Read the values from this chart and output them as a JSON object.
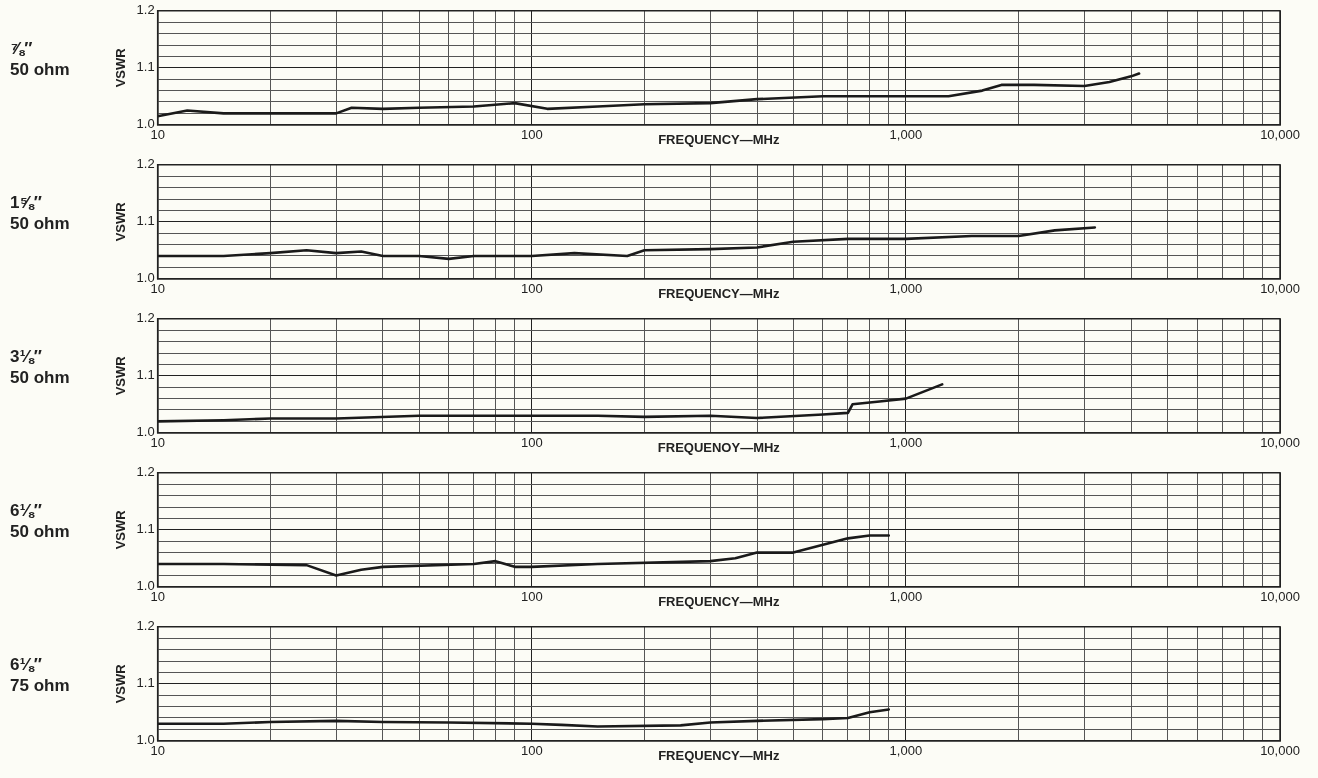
{
  "chart_data": [
    {
      "type": "line",
      "title": "⅞″\n50 ohm",
      "ylabel": "VSWR",
      "xlabel": "FREQUENCY—MHz",
      "log": "x",
      "grid": true,
      "marker": "none",
      "line_style": "solid",
      "color": "#1a1a1a",
      "x": [
        10,
        12,
        15,
        20,
        30,
        33,
        40,
        50,
        70,
        90,
        110,
        150,
        200,
        300,
        400,
        600,
        800,
        1000,
        1300,
        1600,
        1800,
        2200,
        3000,
        3500,
        4000,
        4200
      ],
      "values": [
        1.015,
        1.025,
        1.02,
        1.02,
        1.02,
        1.03,
        1.028,
        1.03,
        1.032,
        1.038,
        1.028,
        1.032,
        1.036,
        1.038,
        1.045,
        1.05,
        1.05,
        1.05,
        1.05,
        1.06,
        1.07,
        1.07,
        1.068,
        1.075,
        1.085,
        1.09
      ],
      "xlim": [
        10,
        10000
      ],
      "xticks": [
        {
          "value": 10,
          "label": "10"
        },
        {
          "value": 20,
          "label": null
        },
        {
          "value": 30,
          "label": null
        },
        {
          "value": 40,
          "label": null
        },
        {
          "value": 50,
          "label": null
        },
        {
          "value": 60,
          "label": null
        },
        {
          "value": 70,
          "label": null
        },
        {
          "value": 80,
          "label": null
        },
        {
          "value": 90,
          "label": null
        },
        {
          "value": 100,
          "label": "100"
        },
        {
          "value": 200,
          "label": null
        },
        {
          "value": 300,
          "label": null
        },
        {
          "value": 400,
          "label": null
        },
        {
          "value": 500,
          "label": null
        },
        {
          "value": 600,
          "label": null
        },
        {
          "value": 700,
          "label": null
        },
        {
          "value": 800,
          "label": null
        },
        {
          "value": 900,
          "label": null
        },
        {
          "value": 1000,
          "label": "1,000"
        },
        {
          "value": 2000,
          "label": null
        },
        {
          "value": 3000,
          "label": null
        },
        {
          "value": 4000,
          "label": null
        },
        {
          "value": 5000,
          "label": null
        },
        {
          "value": 6000,
          "label": null
        },
        {
          "value": 7000,
          "label": null
        },
        {
          "value": 8000,
          "label": null
        },
        {
          "value": 9000,
          "label": null
        },
        {
          "value": 10000,
          "label": "10,000"
        }
      ],
      "ylim": [
        1.0,
        1.2
      ],
      "yticks": [
        {
          "value": 1.0,
          "label": "1.0"
        },
        {
          "value": 1.02,
          "label": null
        },
        {
          "value": 1.04,
          "label": null
        },
        {
          "value": 1.06,
          "label": null
        },
        {
          "value": 1.08,
          "label": null
        },
        {
          "value": 1.1,
          "label": "1.1"
        },
        {
          "value": 1.12,
          "label": null
        },
        {
          "value": 1.14,
          "label": null
        },
        {
          "value": 1.16,
          "label": null
        },
        {
          "value": 1.18,
          "label": null
        },
        {
          "value": 1.2,
          "label": "1.2"
        }
      ]
    },
    {
      "type": "line",
      "title": "1⅝″\n50 ohm",
      "ylabel": "VSWR",
      "xlabel": "FREQUENCY—MHz",
      "log": "x",
      "grid": true,
      "marker": "none",
      "line_style": "solid",
      "color": "#1a1a1a",
      "x": [
        10,
        15,
        20,
        25,
        30,
        35,
        40,
        50,
        60,
        70,
        100,
        130,
        180,
        200,
        300,
        400,
        500,
        700,
        1000,
        1500,
        2000,
        2500,
        3200
      ],
      "values": [
        1.04,
        1.04,
        1.045,
        1.05,
        1.045,
        1.048,
        1.04,
        1.04,
        1.035,
        1.04,
        1.04,
        1.045,
        1.04,
        1.05,
        1.052,
        1.055,
        1.065,
        1.07,
        1.07,
        1.075,
        1.075,
        1.085,
        1.09
      ],
      "xlim": [
        10,
        10000
      ],
      "xticks": [
        {
          "value": 10,
          "label": "10"
        },
        {
          "value": 20,
          "label": null
        },
        {
          "value": 30,
          "label": null
        },
        {
          "value": 40,
          "label": null
        },
        {
          "value": 50,
          "label": null
        },
        {
          "value": 60,
          "label": null
        },
        {
          "value": 70,
          "label": null
        },
        {
          "value": 80,
          "label": null
        },
        {
          "value": 90,
          "label": null
        },
        {
          "value": 100,
          "label": "100"
        },
        {
          "value": 200,
          "label": null
        },
        {
          "value": 300,
          "label": null
        },
        {
          "value": 400,
          "label": null
        },
        {
          "value": 500,
          "label": null
        },
        {
          "value": 600,
          "label": null
        },
        {
          "value": 700,
          "label": null
        },
        {
          "value": 800,
          "label": null
        },
        {
          "value": 900,
          "label": null
        },
        {
          "value": 1000,
          "label": "1,000"
        },
        {
          "value": 2000,
          "label": null
        },
        {
          "value": 3000,
          "label": null
        },
        {
          "value": 4000,
          "label": null
        },
        {
          "value": 5000,
          "label": null
        },
        {
          "value": 6000,
          "label": null
        },
        {
          "value": 7000,
          "label": null
        },
        {
          "value": 8000,
          "label": null
        },
        {
          "value": 9000,
          "label": null
        },
        {
          "value": 10000,
          "label": "10,000"
        }
      ],
      "ylim": [
        1.0,
        1.2
      ],
      "yticks": [
        {
          "value": 1.0,
          "label": "1.0"
        },
        {
          "value": 1.02,
          "label": null
        },
        {
          "value": 1.04,
          "label": null
        },
        {
          "value": 1.06,
          "label": null
        },
        {
          "value": 1.08,
          "label": null
        },
        {
          "value": 1.1,
          "label": "1.1"
        },
        {
          "value": 1.12,
          "label": null
        },
        {
          "value": 1.14,
          "label": null
        },
        {
          "value": 1.16,
          "label": null
        },
        {
          "value": 1.18,
          "label": null
        },
        {
          "value": 1.2,
          "label": "1.2"
        }
      ]
    },
    {
      "type": "line",
      "title": "3⅛″\n50 ohm",
      "ylabel": "VSWR",
      "xlabel": "FREQUENOY—MHz",
      "log": "x",
      "grid": true,
      "marker": "none",
      "line_style": "solid",
      "color": "#1a1a1a",
      "x": [
        10,
        15,
        20,
        30,
        50,
        100,
        150,
        200,
        300,
        400,
        600,
        700,
        720,
        850,
        1000,
        1250
      ],
      "values": [
        1.02,
        1.022,
        1.025,
        1.025,
        1.03,
        1.03,
        1.03,
        1.028,
        1.03,
        1.026,
        1.032,
        1.035,
        1.05,
        1.055,
        1.06,
        1.085
      ],
      "xlim": [
        10,
        10000
      ],
      "xticks": [
        {
          "value": 10,
          "label": "10"
        },
        {
          "value": 20,
          "label": null
        },
        {
          "value": 30,
          "label": null
        },
        {
          "value": 40,
          "label": null
        },
        {
          "value": 50,
          "label": null
        },
        {
          "value": 60,
          "label": null
        },
        {
          "value": 70,
          "label": null
        },
        {
          "value": 80,
          "label": null
        },
        {
          "value": 90,
          "label": null
        },
        {
          "value": 100,
          "label": "100"
        },
        {
          "value": 200,
          "label": null
        },
        {
          "value": 300,
          "label": null
        },
        {
          "value": 400,
          "label": null
        },
        {
          "value": 500,
          "label": null
        },
        {
          "value": 600,
          "label": null
        },
        {
          "value": 700,
          "label": null
        },
        {
          "value": 800,
          "label": null
        },
        {
          "value": 900,
          "label": null
        },
        {
          "value": 1000,
          "label": "1,000"
        },
        {
          "value": 2000,
          "label": null
        },
        {
          "value": 3000,
          "label": null
        },
        {
          "value": 4000,
          "label": null
        },
        {
          "value": 5000,
          "label": null
        },
        {
          "value": 6000,
          "label": null
        },
        {
          "value": 7000,
          "label": null
        },
        {
          "value": 8000,
          "label": null
        },
        {
          "value": 9000,
          "label": null
        },
        {
          "value": 10000,
          "label": "10,000"
        }
      ],
      "ylim": [
        1.0,
        1.2
      ],
      "yticks": [
        {
          "value": 1.0,
          "label": "1.0"
        },
        {
          "value": 1.02,
          "label": null
        },
        {
          "value": 1.04,
          "label": null
        },
        {
          "value": 1.06,
          "label": null
        },
        {
          "value": 1.08,
          "label": null
        },
        {
          "value": 1.1,
          "label": "1.1"
        },
        {
          "value": 1.12,
          "label": null
        },
        {
          "value": 1.14,
          "label": null
        },
        {
          "value": 1.16,
          "label": null
        },
        {
          "value": 1.18,
          "label": null
        },
        {
          "value": 1.2,
          "label": "1.2"
        }
      ]
    },
    {
      "type": "line",
      "title": "6⅛″\n50 ohm",
      "ylabel": "VSWR",
      "xlabel": "FREQUENCY—MHz",
      "log": "x",
      "grid": true,
      "marker": "none",
      "line_style": "solid",
      "color": "#1a1a1a",
      "x": [
        10,
        15,
        25,
        30,
        35,
        40,
        70,
        80,
        90,
        100,
        150,
        300,
        350,
        400,
        500,
        700,
        800,
        900
      ],
      "values": [
        1.04,
        1.04,
        1.038,
        1.02,
        1.03,
        1.035,
        1.04,
        1.045,
        1.035,
        1.035,
        1.04,
        1.045,
        1.05,
        1.06,
        1.06,
        1.085,
        1.09,
        1.09
      ],
      "xlim": [
        10,
        10000
      ],
      "xticks": [
        {
          "value": 10,
          "label": "10"
        },
        {
          "value": 20,
          "label": null
        },
        {
          "value": 30,
          "label": null
        },
        {
          "value": 40,
          "label": null
        },
        {
          "value": 50,
          "label": null
        },
        {
          "value": 60,
          "label": null
        },
        {
          "value": 70,
          "label": null
        },
        {
          "value": 80,
          "label": null
        },
        {
          "value": 90,
          "label": null
        },
        {
          "value": 100,
          "label": "100"
        },
        {
          "value": 200,
          "label": null
        },
        {
          "value": 300,
          "label": null
        },
        {
          "value": 400,
          "label": null
        },
        {
          "value": 500,
          "label": null
        },
        {
          "value": 600,
          "label": null
        },
        {
          "value": 700,
          "label": null
        },
        {
          "value": 800,
          "label": null
        },
        {
          "value": 900,
          "label": null
        },
        {
          "value": 1000,
          "label": "1,000"
        },
        {
          "value": 2000,
          "label": null
        },
        {
          "value": 3000,
          "label": null
        },
        {
          "value": 4000,
          "label": null
        },
        {
          "value": 5000,
          "label": null
        },
        {
          "value": 6000,
          "label": null
        },
        {
          "value": 7000,
          "label": null
        },
        {
          "value": 8000,
          "label": null
        },
        {
          "value": 9000,
          "label": null
        },
        {
          "value": 10000,
          "label": "10,000"
        }
      ],
      "ylim": [
        1.0,
        1.2
      ],
      "yticks": [
        {
          "value": 1.0,
          "label": "1.0"
        },
        {
          "value": 1.02,
          "label": null
        },
        {
          "value": 1.04,
          "label": null
        },
        {
          "value": 1.06,
          "label": null
        },
        {
          "value": 1.08,
          "label": null
        },
        {
          "value": 1.1,
          "label": "1.1"
        },
        {
          "value": 1.12,
          "label": null
        },
        {
          "value": 1.14,
          "label": null
        },
        {
          "value": 1.16,
          "label": null
        },
        {
          "value": 1.18,
          "label": null
        },
        {
          "value": 1.2,
          "label": "1.2"
        }
      ]
    },
    {
      "type": "line",
      "title": "6⅛″\n75 ohm",
      "ylabel": "VSWR",
      "xlabel": "FREQUENCY—MHz",
      "log": "x",
      "grid": true,
      "marker": "none",
      "line_style": "solid",
      "color": "#1a1a1a",
      "x": [
        10,
        15,
        20,
        30,
        40,
        60,
        100,
        120,
        150,
        250,
        300,
        400,
        600,
        700,
        800,
        900
      ],
      "values": [
        1.03,
        1.03,
        1.033,
        1.035,
        1.033,
        1.032,
        1.03,
        1.028,
        1.025,
        1.027,
        1.032,
        1.035,
        1.038,
        1.04,
        1.05,
        1.055
      ],
      "xlim": [
        10,
        10000
      ],
      "xticks": [
        {
          "value": 10,
          "label": "10"
        },
        {
          "value": 20,
          "label": null
        },
        {
          "value": 30,
          "label": null
        },
        {
          "value": 40,
          "label": null
        },
        {
          "value": 50,
          "label": null
        },
        {
          "value": 60,
          "label": null
        },
        {
          "value": 70,
          "label": null
        },
        {
          "value": 80,
          "label": null
        },
        {
          "value": 90,
          "label": null
        },
        {
          "value": 100,
          "label": "100"
        },
        {
          "value": 200,
          "label": null
        },
        {
          "value": 300,
          "label": null
        },
        {
          "value": 400,
          "label": null
        },
        {
          "value": 500,
          "label": null
        },
        {
          "value": 600,
          "label": null
        },
        {
          "value": 700,
          "label": null
        },
        {
          "value": 800,
          "label": null
        },
        {
          "value": 900,
          "label": null
        },
        {
          "value": 1000,
          "label": "1,000"
        },
        {
          "value": 2000,
          "label": null
        },
        {
          "value": 3000,
          "label": null
        },
        {
          "value": 4000,
          "label": null
        },
        {
          "value": 5000,
          "label": null
        },
        {
          "value": 6000,
          "label": null
        },
        {
          "value": 7000,
          "label": null
        },
        {
          "value": 8000,
          "label": null
        },
        {
          "value": 9000,
          "label": null
        },
        {
          "value": 10000,
          "label": "10,000"
        }
      ],
      "ylim": [
        1.0,
        1.2
      ],
      "yticks": [
        {
          "value": 1.0,
          "label": "1.0"
        },
        {
          "value": 1.02,
          "label": null
        },
        {
          "value": 1.04,
          "label": null
        },
        {
          "value": 1.06,
          "label": null
        },
        {
          "value": 1.08,
          "label": null
        },
        {
          "value": 1.1,
          "label": "1.1"
        },
        {
          "value": 1.12,
          "label": null
        },
        {
          "value": 1.14,
          "label": null
        },
        {
          "value": 1.16,
          "label": null
        },
        {
          "value": 1.18,
          "label": null
        },
        {
          "value": 1.2,
          "label": "1.2"
        }
      ]
    }
  ]
}
